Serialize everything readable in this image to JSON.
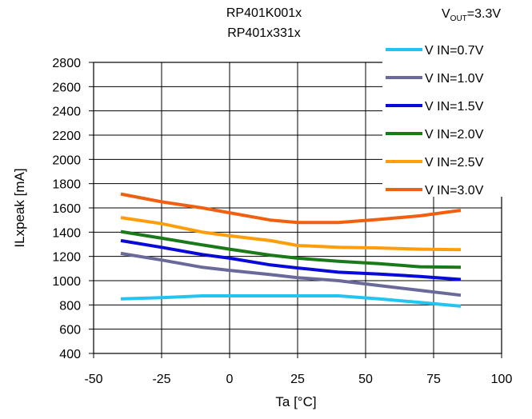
{
  "chart_data": {
    "type": "line",
    "title_lines": [
      "RP401K001x",
      "RP401x331x"
    ],
    "condition": {
      "prefix": "V",
      "subscript": "OUT",
      "suffix": "=3.3V"
    },
    "xlabel": "Ta [°C]",
    "ylabel": "ILxpeak [mA]",
    "xlim": [
      -50,
      100
    ],
    "ylim": [
      400,
      2800
    ],
    "xticks": [
      -50,
      -25,
      0,
      25,
      50,
      75,
      100
    ],
    "yticks": [
      400,
      600,
      800,
      1000,
      1200,
      1400,
      1600,
      1800,
      2000,
      2200,
      2400,
      2600,
      2800
    ],
    "x": [
      -40,
      -25,
      -10,
      0,
      15,
      25,
      40,
      55,
      70,
      85
    ],
    "grid": true,
    "legend_position": "top-right",
    "series": [
      {
        "name": "V IN=0.7V",
        "color": "#22c4f0",
        "values": [
          850,
          860,
          875,
          875,
          875,
          875,
          875,
          850,
          820,
          790
        ]
      },
      {
        "name": "V IN=1.0V",
        "color": "#6a6a9a",
        "values": [
          1225,
          1170,
          1110,
          1085,
          1050,
          1025,
          1000,
          960,
          920,
          880
        ]
      },
      {
        "name": "V IN=1.5V",
        "color": "#0a0ad8",
        "values": [
          1330,
          1275,
          1215,
          1185,
          1130,
          1105,
          1070,
          1055,
          1035,
          1010
        ]
      },
      {
        "name": "V IN=2.0V",
        "color": "#1a7a1a",
        "values": [
          1405,
          1350,
          1295,
          1260,
          1210,
          1185,
          1160,
          1140,
          1115,
          1110
        ]
      },
      {
        "name": "V IN=2.5V",
        "color": "#ff9e0a",
        "values": [
          1520,
          1470,
          1400,
          1370,
          1330,
          1290,
          1275,
          1270,
          1260,
          1255
        ]
      },
      {
        "name": "V IN=3.0V",
        "color": "#f06010",
        "values": [
          1715,
          1650,
          1600,
          1560,
          1500,
          1480,
          1480,
          1505,
          1535,
          1580
        ]
      }
    ]
  }
}
